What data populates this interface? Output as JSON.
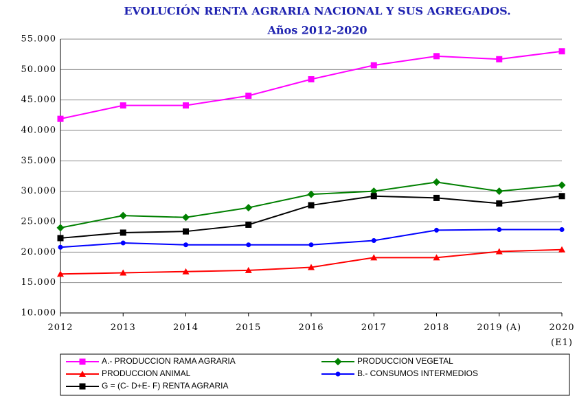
{
  "chart_data": {
    "type": "line",
    "title": "EVOLUCIÓN RENTA AGRARIA NACIONAL Y SUS AGREGADOS.",
    "subtitle": "Años 2012-2020",
    "categories": [
      "2012",
      "2013",
      "2014",
      "2015",
      "2016",
      "2017",
      "2018",
      "2019 (A)",
      "2020\n(E1)"
    ],
    "series": [
      {
        "name": "A.- PRODUCCION RAMA AGRARIA",
        "color": "#ff00ff",
        "marker": "square",
        "values": [
          41900,
          44100,
          44100,
          45700,
          48400,
          50700,
          52200,
          51700,
          53000
        ]
      },
      {
        "name": "PRODUCCION VEGETAL",
        "color": "#008000",
        "marker": "diamond",
        "values": [
          24000,
          26000,
          25700,
          27300,
          29500,
          30000,
          31500,
          30000,
          31000
        ]
      },
      {
        "name": "PRODUCCION ANIMAL",
        "color": "#ff0000",
        "marker": "triangle",
        "values": [
          16400,
          16600,
          16800,
          17000,
          17500,
          19100,
          19100,
          20100,
          20400
        ]
      },
      {
        "name": "B.- CONSUMOS INTERMEDIOS",
        "color": "#0000ff",
        "marker": "circle",
        "values": [
          20800,
          21500,
          21200,
          21200,
          21200,
          21900,
          23600,
          23700,
          23700
        ]
      },
      {
        "name": "G = (C- D+E- F) RENTA AGRARIA",
        "color": "#000000",
        "marker": "square",
        "values": [
          22300,
          23200,
          23400,
          24500,
          27700,
          29200,
          28900,
          28000,
          29200
        ]
      }
    ],
    "ylim": [
      10000,
      55000
    ],
    "yticks": [
      {
        "value": 10000,
        "label": "10.000"
      },
      {
        "value": 15000,
        "label": "15.000"
      },
      {
        "value": 20000,
        "label": "20.000"
      },
      {
        "value": 25000,
        "label": "25.000"
      },
      {
        "value": 30000,
        "label": "30.000"
      },
      {
        "value": 35000,
        "label": "35.000"
      },
      {
        "value": 40000,
        "label": "40.000"
      },
      {
        "value": 45000,
        "label": "45.000"
      },
      {
        "value": 50000,
        "label": "50.000"
      },
      {
        "value": 55000,
        "label": "55.000"
      }
    ],
    "grid": true
  }
}
